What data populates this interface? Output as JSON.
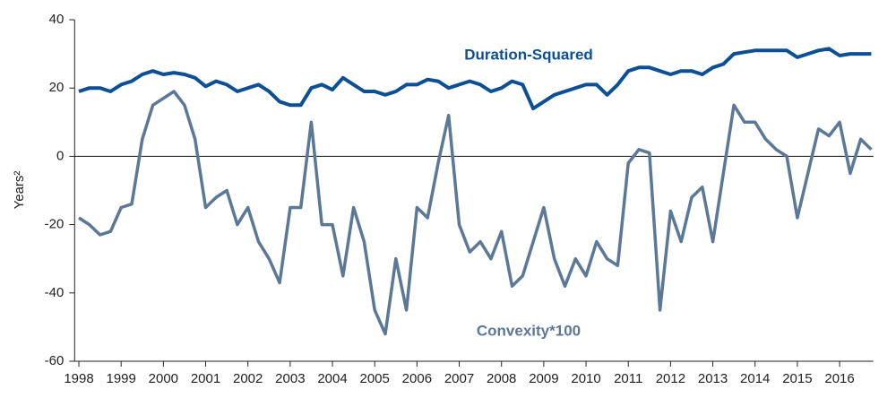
{
  "chart_data": {
    "type": "line",
    "y_label": "Years²",
    "x": [
      1998.0,
      1998.25,
      1998.5,
      1998.75,
      1999.0,
      1999.25,
      1999.5,
      1999.75,
      2000.0,
      2000.25,
      2000.5,
      2000.75,
      2001.0,
      2001.25,
      2001.5,
      2001.75,
      2002.0,
      2002.25,
      2002.5,
      2002.75,
      2003.0,
      2003.25,
      2003.5,
      2003.75,
      2004.0,
      2004.25,
      2004.5,
      2004.75,
      2005.0,
      2005.25,
      2005.5,
      2005.75,
      2006.0,
      2006.25,
      2006.5,
      2006.75,
      2007.0,
      2007.25,
      2007.5,
      2007.75,
      2008.0,
      2008.25,
      2008.5,
      2008.75,
      2009.0,
      2009.25,
      2009.5,
      2009.75,
      2010.0,
      2010.25,
      2010.5,
      2010.75,
      2011.0,
      2011.25,
      2011.5,
      2011.75,
      2012.0,
      2012.25,
      2012.5,
      2012.75,
      2013.0,
      2013.25,
      2013.5,
      2013.75,
      2014.0,
      2014.25,
      2014.5,
      2014.75,
      2015.0,
      2015.25,
      2015.5,
      2015.75,
      2016.0,
      2016.25,
      2016.5,
      2016.75
    ],
    "series": [
      {
        "name": "Duration-Squared",
        "color": "#0d4f94",
        "values": [
          19,
          20,
          20,
          19,
          21,
          22,
          24,
          25,
          24,
          24.5,
          24,
          23,
          20.5,
          22,
          21,
          19,
          20,
          21,
          19,
          16,
          15,
          15,
          20,
          21,
          19.5,
          23,
          21,
          19,
          19,
          18,
          19,
          21,
          21,
          22.5,
          22,
          20,
          21,
          22,
          21,
          19,
          20,
          22,
          21,
          14,
          16,
          18,
          19,
          20,
          21,
          21,
          18,
          21,
          25,
          26,
          26,
          25,
          24,
          25,
          25,
          24,
          26,
          27,
          30,
          30.5,
          31,
          31,
          31,
          31,
          29,
          30,
          31,
          31.5,
          29.5,
          30,
          30,
          30
        ]
      },
      {
        "name": "Convexity*100",
        "color": "#5b7896",
        "values": [
          -18,
          -20,
          -23,
          -22,
          -15,
          -14,
          5,
          15,
          17,
          19,
          15,
          5,
          -15,
          -12,
          -10,
          -20,
          -15,
          -25,
          -30,
          -37,
          -15,
          -15,
          10,
          -20,
          -20,
          -35,
          -15,
          -25,
          -45,
          -52,
          -30,
          -45,
          -15,
          -18,
          -2,
          12,
          -20,
          -28,
          -25,
          -30,
          -22,
          -38,
          -35,
          -25,
          -15,
          -30,
          -38,
          -30,
          -35,
          -25,
          -30,
          -32,
          -2,
          2,
          1,
          -45,
          -16,
          -25,
          -12,
          -9,
          -25,
          -5,
          15,
          10,
          10,
          5,
          2,
          0,
          -18,
          -5,
          8,
          6,
          10,
          -5,
          5,
          2
        ]
      }
    ],
    "xlim": [
      1997.9,
      2016.8
    ],
    "xticks": [
      1998,
      1999,
      2000,
      2001,
      2002,
      2003,
      2004,
      2005,
      2006,
      2007,
      2008,
      2009,
      2010,
      2011,
      2012,
      2013,
      2014,
      2015,
      2016
    ],
    "ylim": [
      -60,
      40
    ],
    "yticks": [
      -60,
      -40,
      -20,
      0,
      20,
      40
    ],
    "zero_line": true
  }
}
